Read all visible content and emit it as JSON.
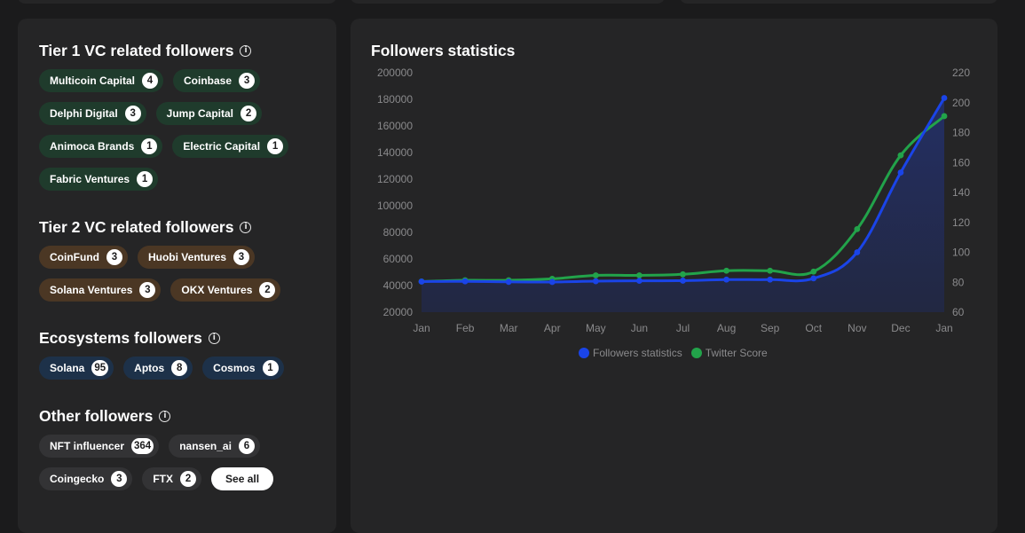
{
  "sections": {
    "tier1": {
      "title": "Tier 1 VC related followers",
      "chips": [
        {
          "label": "Multicoin Capital",
          "count": "4"
        },
        {
          "label": "Coinbase",
          "count": "3"
        },
        {
          "label": "Delphi Digital",
          "count": "3"
        },
        {
          "label": "Jump Capital",
          "count": "2"
        },
        {
          "label": "Animoca Brands",
          "count": "1"
        },
        {
          "label": "Electric Capital",
          "count": "1"
        },
        {
          "label": "Fabric Ventures",
          "count": "1"
        }
      ]
    },
    "tier2": {
      "title": "Tier 2 VC related followers",
      "chips": [
        {
          "label": "CoinFund",
          "count": "3"
        },
        {
          "label": "Huobi Ventures",
          "count": "3"
        },
        {
          "label": "Solana Ventures",
          "count": "3"
        },
        {
          "label": "OKX Ventures",
          "count": "2"
        }
      ]
    },
    "ecosystems": {
      "title": "Ecosystems followers",
      "chips": [
        {
          "label": "Solana",
          "count": "95"
        },
        {
          "label": "Aptos",
          "count": "8"
        },
        {
          "label": "Cosmos",
          "count": "1"
        }
      ]
    },
    "other": {
      "title": "Other followers",
      "chips": [
        {
          "label": "NFT influencer",
          "count": "364"
        },
        {
          "label": "nansen_ai",
          "count": "6"
        },
        {
          "label": "Coingecko",
          "count": "3"
        },
        {
          "label": "FTX",
          "count": "2"
        }
      ],
      "see_all_label": "See all"
    }
  },
  "colors": {
    "tier1_chip": "#1f3b2c",
    "tier2_chip": "#4b3724",
    "ecosystem_chip": "#1d3149",
    "other_chip": "#333335",
    "followers_series": "#1a44e8",
    "twitter_series": "#22a34a"
  },
  "chart_data": {
    "type": "line",
    "title": "Followers statistics",
    "categories": [
      "Jan",
      "Feb",
      "Mar",
      "Apr",
      "May",
      "Jun",
      "Jul",
      "Aug",
      "Sep",
      "Oct",
      "Nov",
      "Dec",
      "Jan"
    ],
    "left_axis": {
      "ticks": [
        "200000",
        "180000",
        "160000",
        "140000",
        "120000",
        "100000",
        "80000",
        "60000",
        "40000",
        "20000"
      ],
      "ylim": [
        20000,
        200000
      ]
    },
    "right_axis": {
      "ticks": [
        "220",
        "200",
        "180",
        "160",
        "140",
        "120",
        "100",
        "80",
        "60"
      ],
      "ylim": [
        60,
        220
      ]
    },
    "series": [
      {
        "name": "Followers statistics",
        "axis": "left",
        "color": "#1a44e8",
        "values": [
          43000,
          43200,
          42800,
          42700,
          43300,
          43600,
          43700,
          44500,
          44500,
          45400,
          65000,
          125000,
          181000
        ]
      },
      {
        "name": "Twitter Score",
        "axis": "right",
        "color": "#22a34a",
        "values": [
          80.5,
          81.3,
          81.3,
          82.3,
          84.6,
          84.6,
          85.3,
          87.7,
          87.7,
          87.1,
          115.5,
          164.8,
          191
        ]
      }
    ],
    "legend_position": "bottom",
    "grid": false
  }
}
